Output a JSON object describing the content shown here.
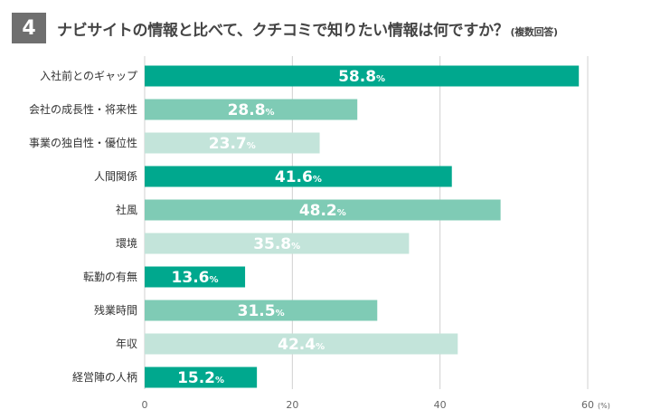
{
  "header": {
    "number": "4",
    "title": "ナビサイトの情報と比べて、クチコミで知りたい情報は何ですか？",
    "note": "(複数回答)"
  },
  "colors": {
    "dark": "#00a88e",
    "mid": "#7fcbb5",
    "light": "#c3e4da",
    "grid": "#d0d0d0"
  },
  "chart_data": {
    "type": "bar",
    "orientation": "horizontal",
    "title": "ナビサイトの情報と比べて、クチコミで知りたい情報は何ですか？(複数回答)",
    "categories": [
      "入社前とのギャップ",
      "会社の成長性・将来性",
      "事業の独自性・優位性",
      "人間関係",
      "社風",
      "環境",
      "転勤の有無",
      "残業時間",
      "年収",
      "経営陣の人柄"
    ],
    "values": [
      58.8,
      28.8,
      23.7,
      41.6,
      48.2,
      35.8,
      13.6,
      31.5,
      42.4,
      15.2
    ],
    "value_suffix": "%",
    "shades": [
      "dark",
      "mid",
      "light",
      "dark",
      "mid",
      "light",
      "dark",
      "mid",
      "light",
      "dark"
    ],
    "xlim": [
      0,
      60
    ],
    "xticks": [
      "0",
      "20",
      "40",
      "60"
    ],
    "x_unit": "(%)",
    "grid": true
  }
}
